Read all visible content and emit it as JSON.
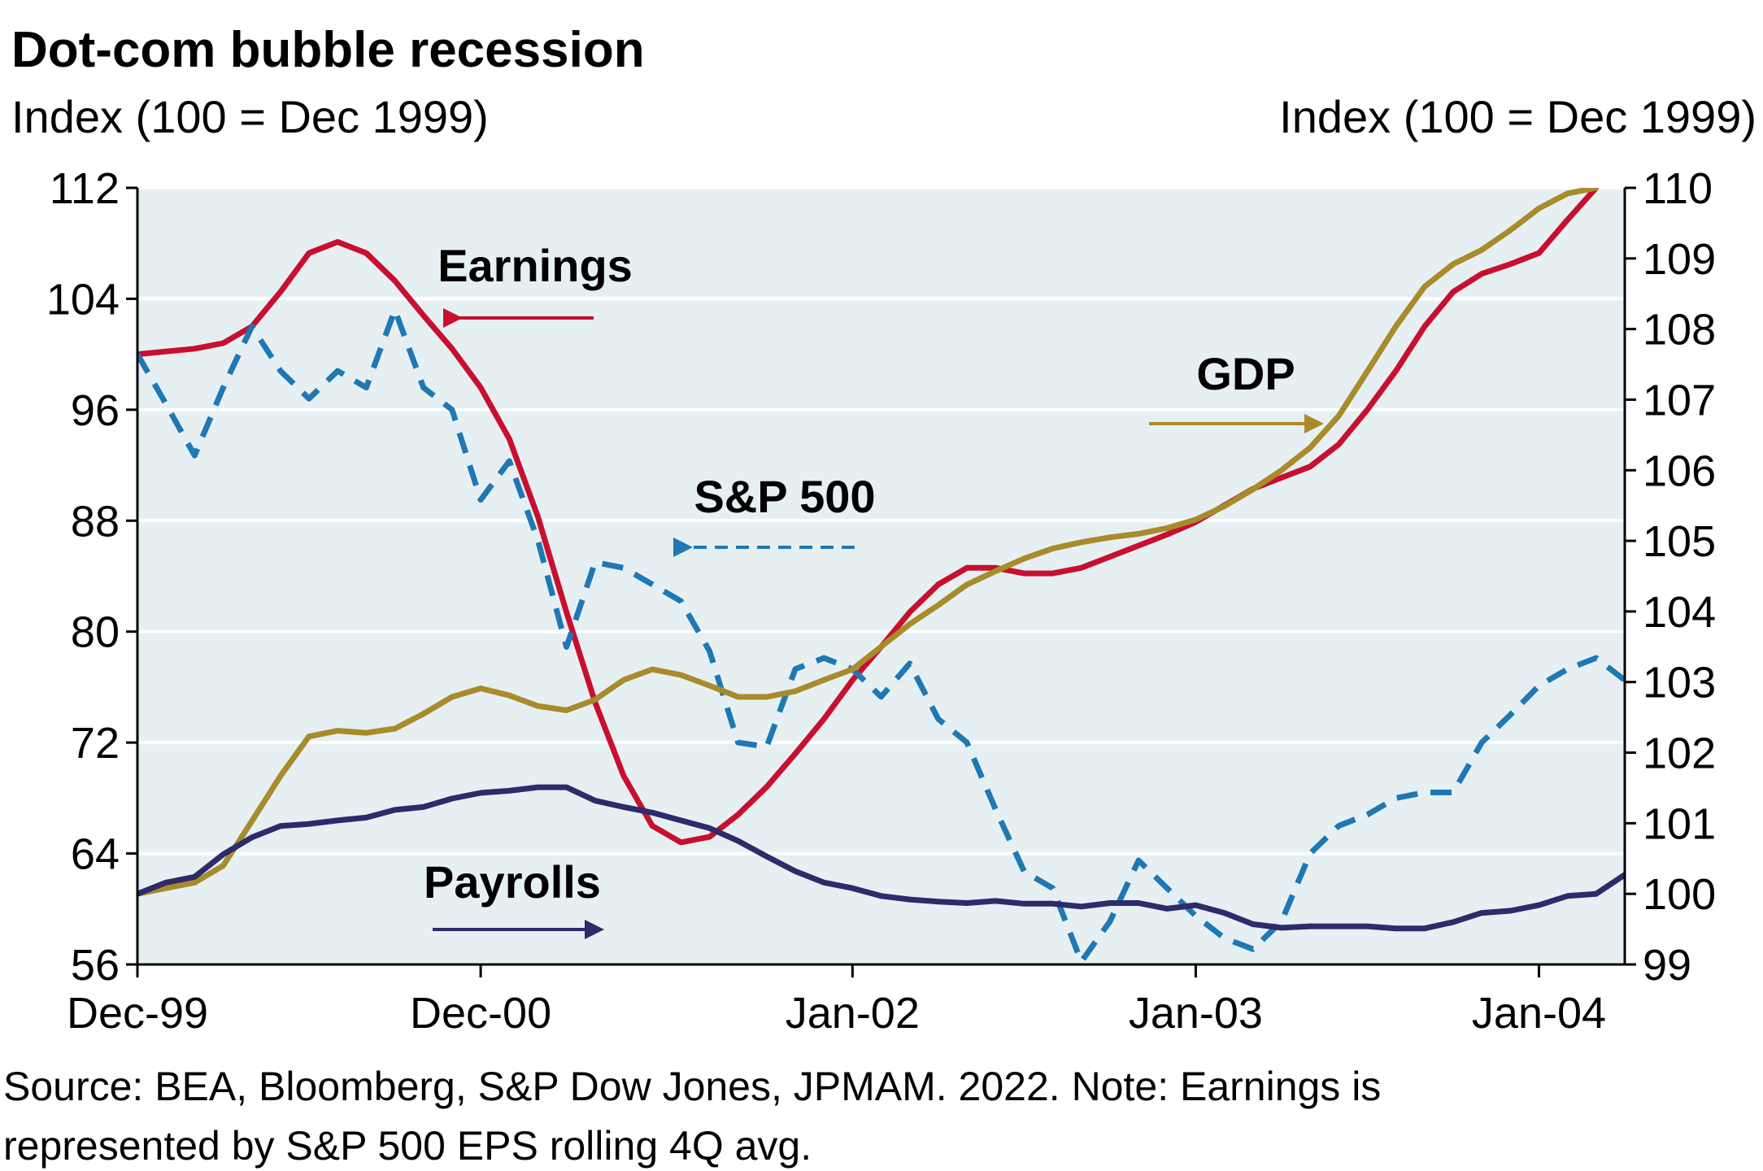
{
  "chart_data": {
    "type": "line",
    "title": "Dot-com bubble recession",
    "y_label": "Index (100 = Dec 1999)",
    "y2_label": "Index (100 = Dec 1999)",
    "footnote": [
      "Source: BEA, Bloomberg, S&P Dow Jones, JPMAM. 2022. Note: Earnings is",
      "represented by S&P 500 EPS rolling 4Q avg."
    ],
    "categories": [
      "Dec-99",
      null,
      null,
      null,
      null,
      null,
      null,
      null,
      null,
      null,
      null,
      null,
      "Dec-00",
      null,
      null,
      null,
      null,
      null,
      null,
      null,
      null,
      null,
      null,
      null,
      null,
      "Jan-02",
      null,
      null,
      null,
      null,
      null,
      null,
      null,
      null,
      null,
      null,
      null,
      "Jan-03",
      null,
      null,
      null,
      null,
      null,
      null,
      null,
      null,
      null,
      null,
      null,
      "Jan-04",
      null,
      null,
      null
    ],
    "ylim": [
      56,
      112
    ],
    "yticks": [
      56,
      64,
      72,
      80,
      88,
      96,
      104,
      112
    ],
    "y2lim": [
      99,
      110
    ],
    "y2ticks": [
      99,
      100,
      101,
      102,
      103,
      104,
      105,
      106,
      107,
      108,
      109,
      110
    ],
    "grid": true,
    "background": "#e6f0f3",
    "series": [
      {
        "name": "Earnings",
        "color": "#c8102e",
        "style": "solid",
        "values": [
          100,
          100.2,
          100.4,
          100.8,
          102,
          104.5,
          107.3,
          108.1,
          107.3,
          105.3,
          102.8,
          100.4,
          97.6,
          93.9,
          88.3,
          81.4,
          74.9,
          69.6,
          66,
          64.8,
          65.2,
          66.8,
          68.8,
          71.2,
          73.7,
          76.5,
          78.9,
          81.4,
          83.4,
          84.6,
          84.6,
          84.2,
          84.2,
          84.6,
          85.4,
          86.2,
          87,
          87.9,
          89.1,
          90.3,
          91.1,
          91.9,
          93.5,
          96,
          98.8,
          102,
          104.5,
          105.8,
          106.5,
          107.3,
          109.7,
          112,
          null
        ]
      },
      {
        "name": "S&P 500",
        "color": "#1f78b4",
        "style": "dashed",
        "values": [
          100,
          96.4,
          92.7,
          97.6,
          102,
          98.8,
          96.8,
          98.8,
          97.6,
          103.2,
          97.6,
          96,
          89.5,
          92.3,
          86.6,
          78.9,
          85,
          84.6,
          83.4,
          82.2,
          78.6,
          72,
          71.7,
          77.3,
          78.1,
          77.3,
          75.3,
          77.7,
          73.7,
          72,
          67.2,
          62.7,
          61.5,
          56.2,
          59.1,
          63.5,
          61.5,
          59.5,
          57.9,
          57.1,
          59.1,
          64,
          66,
          66.8,
          68,
          68.4,
          68.4,
          72,
          74,
          76.1,
          77.3,
          78.1,
          76.5
        ]
      },
      {
        "name": "GDP",
        "color": "#a88b2a",
        "style": "solid",
        "axis": "y2",
        "values": [
          100,
          100.08,
          100.16,
          100.4,
          101.03,
          101.67,
          102.23,
          102.31,
          102.28,
          102.34,
          102.55,
          102.79,
          102.91,
          102.81,
          102.66,
          102.6,
          102.75,
          103.03,
          103.18,
          103.1,
          102.95,
          102.79,
          102.79,
          102.87,
          103.03,
          103.18,
          103.5,
          103.82,
          104.09,
          104.38,
          104.57,
          104.75,
          104.89,
          104.98,
          105.05,
          105.1,
          105.18,
          105.3,
          105.49,
          105.73,
          106,
          106.32,
          106.77,
          107.4,
          108.04,
          108.6,
          108.92,
          109.12,
          109.4,
          109.71,
          109.92,
          110,
          null
        ]
      },
      {
        "name": "Payrolls",
        "color": "#2e2a6b",
        "style": "solid",
        "axis": "y2",
        "values": [
          100,
          100.16,
          100.24,
          100.56,
          100.8,
          100.96,
          100.99,
          101.04,
          101.08,
          101.19,
          101.23,
          101.35,
          101.43,
          101.46,
          101.51,
          101.51,
          101.32,
          101.23,
          101.15,
          101.04,
          100.93,
          100.75,
          100.53,
          100.32,
          100.16,
          100.08,
          99.97,
          99.92,
          99.89,
          99.87,
          99.9,
          99.86,
          99.86,
          99.82,
          99.87,
          99.87,
          99.79,
          99.84,
          99.73,
          99.57,
          99.52,
          99.54,
          99.54,
          99.54,
          99.51,
          99.51,
          99.6,
          99.73,
          99.76,
          99.84,
          99.97,
          100,
          100.27
        ]
      }
    ]
  }
}
